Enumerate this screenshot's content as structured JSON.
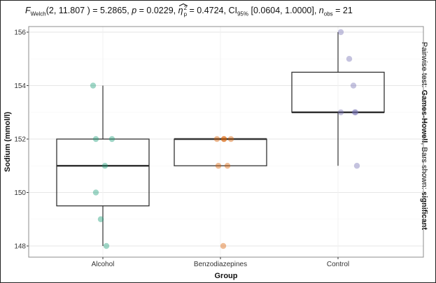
{
  "title": {
    "stat_label": "F",
    "stat_sub": "Welch",
    "df": "(2, 11.807 )",
    "stat_value": "= 5.2865,",
    "p_label": "p",
    "p_value": "= 0.0229,",
    "effsize_label": "η",
    "effsize_sub": "p",
    "effsize_sup": "2",
    "effsize_value": "= 0.4724,",
    "ci_label": "CI",
    "ci_sub": "95%",
    "ci_value": "[0.0604, 1.0000],",
    "n_label": "n",
    "n_sub": "obs",
    "n_value": "= 21"
  },
  "right_caption": {
    "prefix": "Pairwise test: ",
    "test": "Games-Howell",
    "mid": ", Bars shown: ",
    "shown": "significant"
  },
  "chart_data": {
    "type": "box",
    "xlabel": "Group",
    "ylabel": "Sodium (mmol/l)",
    "categories": [
      "Alcohol",
      "Benzodiazepines",
      "Control"
    ],
    "ylim": [
      147.6,
      156.2
    ],
    "yticks": [
      148,
      150,
      152,
      154,
      156
    ],
    "grid": true,
    "colors": [
      "#1b9e77",
      "#d95f02",
      "#7570b3"
    ],
    "boxes": [
      {
        "group": "Alcohol",
        "min": 148,
        "q1": 149.5,
        "median": 151,
        "q3": 152,
        "max": 154
      },
      {
        "group": "Benzodiazepines",
        "min": 151,
        "q1": 151,
        "median": 152,
        "q3": 152,
        "max": 152
      },
      {
        "group": "Control",
        "min": 151,
        "q1": 153,
        "median": 153,
        "q3": 154.5,
        "max": 156
      }
    ],
    "points": [
      {
        "group": "Alcohol",
        "values": [
          154,
          152,
          152,
          151,
          150,
          149,
          148
        ]
      },
      {
        "group": "Benzodiazepines",
        "values": [
          152,
          152,
          152,
          152,
          151,
          151,
          148
        ]
      },
      {
        "group": "Control",
        "values": [
          156,
          155,
          154,
          153,
          153,
          153,
          151
        ]
      }
    ]
  }
}
